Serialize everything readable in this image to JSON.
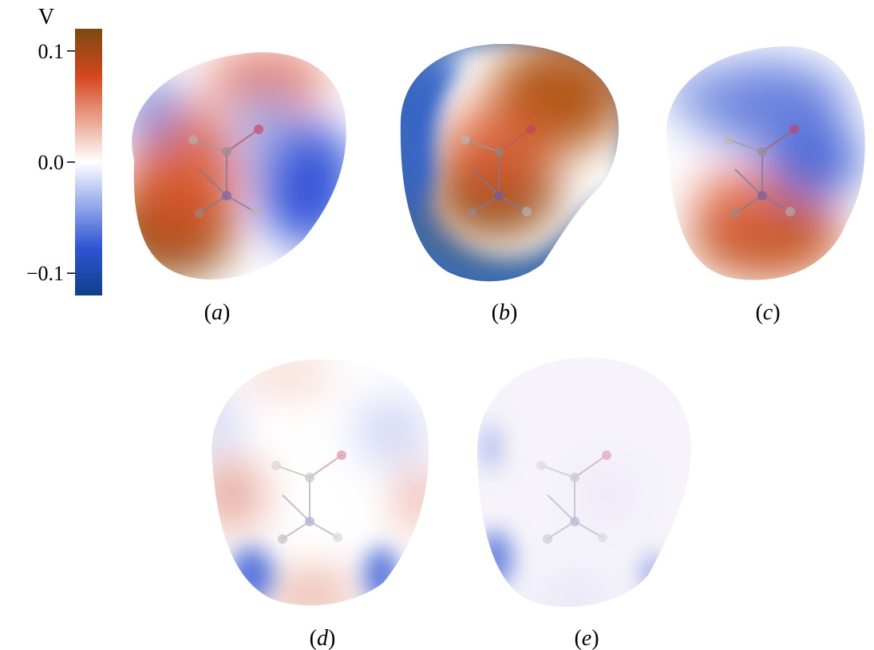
{
  "colorbar": {
    "unit": "V",
    "ticks": [
      {
        "label": "0.1",
        "value": 0.1
      },
      {
        "label": "0.0",
        "value": 0.0
      },
      {
        "label": "−0.1",
        "value": -0.1
      }
    ],
    "range": [
      -0.12,
      0.12
    ],
    "colors": {
      "max": "#7a4a10",
      "high": "#d5471f",
      "mid": "#ffffff",
      "low": "#2f55d4",
      "min": "#0f3f8a"
    }
  },
  "panels": [
    {
      "id": "a",
      "caption_open": "(",
      "caption_letter": "a",
      "caption_close": ")"
    },
    {
      "id": "b",
      "caption_open": "(",
      "caption_letter": "b",
      "caption_close": ")"
    },
    {
      "id": "c",
      "caption_open": "(",
      "caption_letter": "c",
      "caption_close": ")"
    },
    {
      "id": "d",
      "caption_open": "(",
      "caption_letter": "d",
      "caption_close": ")"
    },
    {
      "id": "e",
      "caption_open": "(",
      "caption_letter": "e",
      "caption_close": ")"
    }
  ]
}
